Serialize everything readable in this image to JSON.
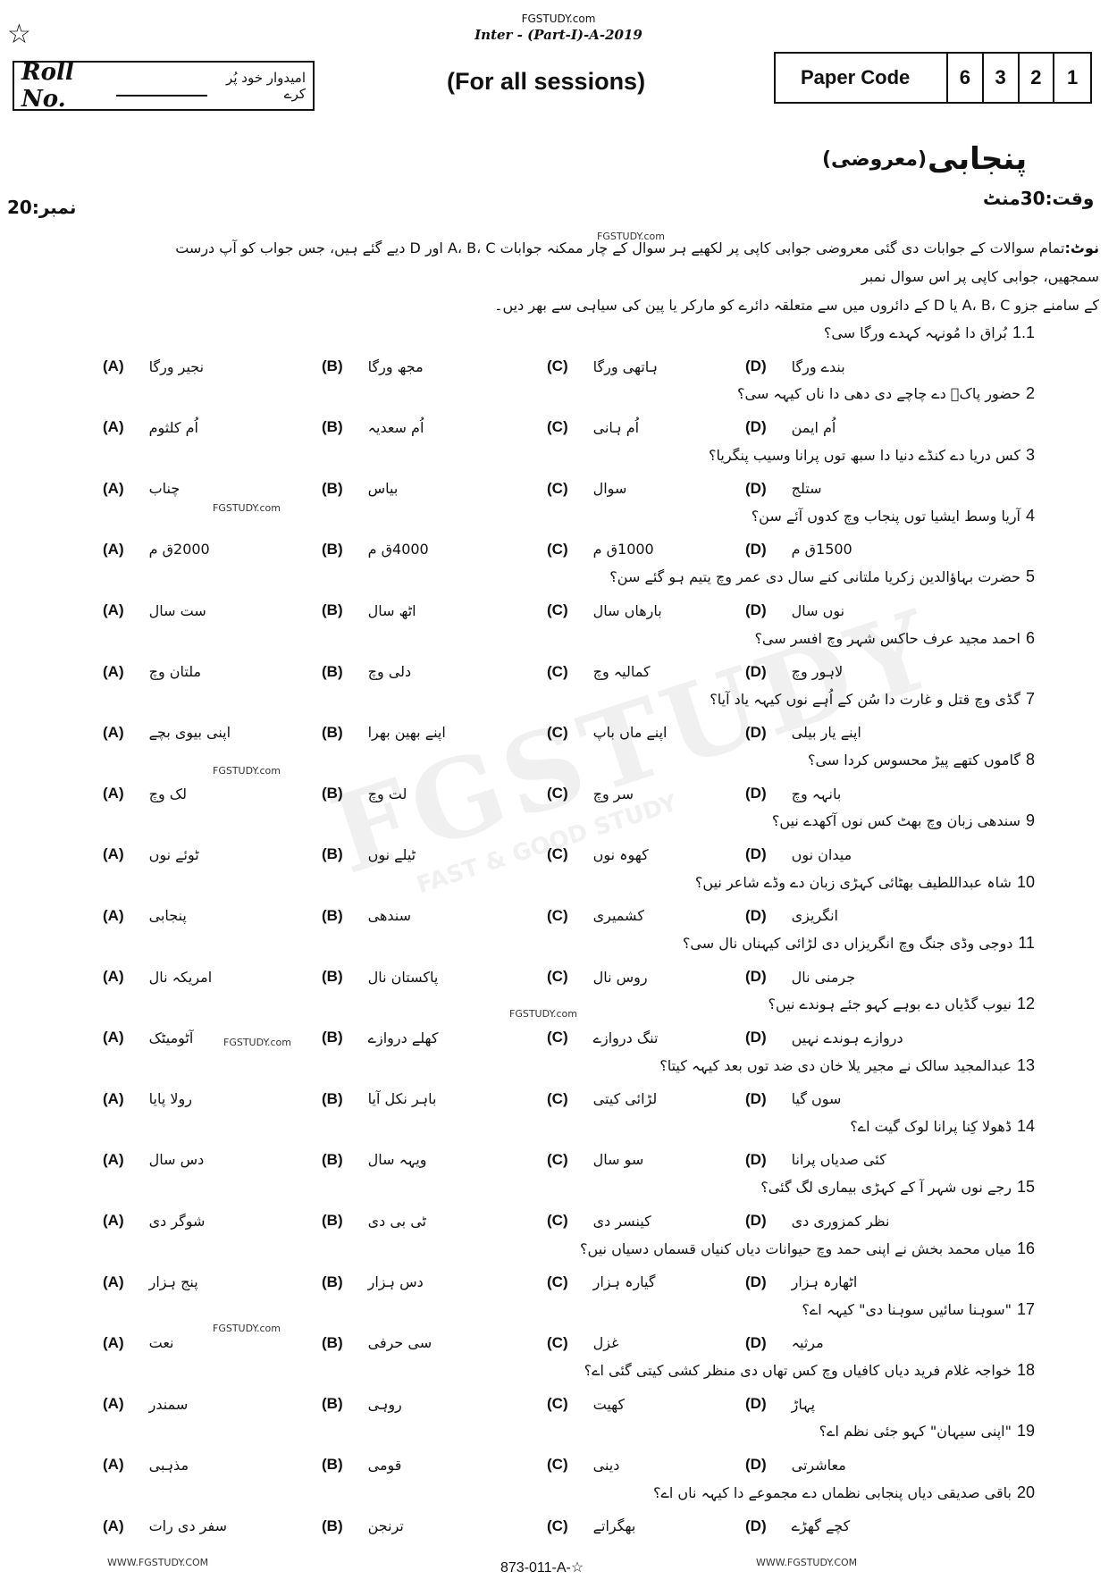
{
  "header": {
    "site": "FGSTUDY.com",
    "info": "Inter - (Part-I)-A-2019",
    "roll_label": "Roll No.",
    "roll_note": "امیدوار خود پُر کرے",
    "sessions": "(For all sessions)",
    "paper_code_label": "Paper Code",
    "paper_code_digits": [
      "6",
      "3",
      "2",
      "1"
    ],
    "subject": "پنجابی",
    "subject_type": "(معروضی)",
    "time": "وقت:30منٹ",
    "marks": "نمبر:20"
  },
  "instructions": {
    "label": "نوٹ:",
    "text_line1": "تمام سوالات کے جوابات دی گئی معروضی جوابی کاپی پر لکھیے ہر سوال کے چار ممکنہ جوابات A، B، C اور D دیے گئے ہیں، جس جواب کو آپ درست سمجھیں، جوابی کاپی پر اس سوال نمبر",
    "text_line2": "کے سامنے جزو A، B، C یا D کے دائروں میں سے متعلقہ دائرے کو مارکر یا پین کی سیاہی سے بھر دیں۔"
  },
  "questions": [
    {
      "num": "1.1",
      "text": "بُراق دا مُونہہ کہدے ورگا سی؟",
      "a": "نجیر ورگا",
      "b": "مجھ ورگا",
      "c": "ہاتھی ورگا",
      "d": "بندے ورگا"
    },
    {
      "num": "2",
      "text": "حضور پاکؐ دے چاچے دی دھی دا ناں کیہہ سی؟",
      "a": "اُم کلثوم",
      "b": "اُم سعدیہ",
      "c": "اُم ہانی",
      "d": "اُم ایمن"
    },
    {
      "num": "3",
      "text": "کس دریا دے کنڈے دنیا دا سبھ توں پرانا وسیب پنگریا؟",
      "a": "چناب",
      "b": "بیاس",
      "c": "سوال",
      "d": "ستلج"
    },
    {
      "num": "4",
      "text": "آریا وسط ایشیا توں پنجاب وچ کدوں آئے سن؟",
      "a": "2000ق م",
      "b": "4000ق م",
      "c": "1000ق م",
      "d": "1500ق م"
    },
    {
      "num": "5",
      "text": "حضرت بہاؤالدین زکریا ملتانی کنے سال دی عمر وچ یتیم ہو گئے سن؟",
      "a": "ست سال",
      "b": "اٹھ سال",
      "c": "بارھاں سال",
      "d": "نوں سال"
    },
    {
      "num": "6",
      "text": "احمد مجید عرف حاکس شہر وچ افسر سی؟",
      "a": "ملتان وچ",
      "b": "دلی وچ",
      "c": "کمالیہ وچ",
      "d": "لاہور وچ"
    },
    {
      "num": "7",
      "text": "گڈی وچ قتل و غارت دا سُن کے اُہے نوں کیہہ یاد آیا؟",
      "a": "اپنی بیوی بچے",
      "b": "اپنے بھین بھرا",
      "c": "اپنے ماں باپ",
      "d": "اپنے یار بیلی"
    },
    {
      "num": "8",
      "text": "گاموں کتھے پیڑ محسوس کردا سی؟",
      "a": "لک وچ",
      "b": "لت وچ",
      "c": "سر وچ",
      "d": "بانہہ وچ"
    },
    {
      "num": "9",
      "text": "سندھی زبان وچ بھٹ کس نوں آکھدے نیں؟",
      "a": "ٹوئے نوں",
      "b": "ٹیلے نوں",
      "c": "کھوہ نوں",
      "d": "میدان نوں"
    },
    {
      "num": "10",
      "text": "شاہ عبداللطیف بھٹائی کہڑی زبان دے وڈے شاعر نیں؟",
      "a": "پنجابی",
      "b": "سندھی",
      "c": "کشمیری",
      "d": "انگریزی"
    },
    {
      "num": "11",
      "text": "دوجی وڈی جنگ وچ انگریزاں دی لڑائی کیہناں نال سی؟",
      "a": "امریکہ نال",
      "b": "پاکستان نال",
      "c": "روس نال",
      "d": "جرمنی نال"
    },
    {
      "num": "12",
      "text": "نیوب گڈیاں دے بوہے کہو جئے ہوندے نیں؟",
      "a": "آٹومیٹک",
      "b": "کھلے دروازے",
      "c": "تنگ دروازے",
      "d": "دروازے ہوندے نہیں"
    },
    {
      "num": "13",
      "text": "عبدالمجید سالک نے مجیر یلا خان دی ضد توں بعد کیہہ کیتا؟",
      "a": "رولا پایا",
      "b": "باہر نکل آیا",
      "c": "لڑائی کیتی",
      "d": "سوں گیا"
    },
    {
      "num": "14",
      "text": "ڈھولا کِنا پرانا لوک گیت اے؟",
      "a": "دس سال",
      "b": "ویہہ سال",
      "c": "سو سال",
      "d": "کئی صدیاں پرانا"
    },
    {
      "num": "15",
      "text": "رجے نوں شہر آ کے کہڑی بیماری لگ گئی؟",
      "a": "شوگر دی",
      "b": "ٹی بی دی",
      "c": "کینسر دی",
      "d": "نظر کمزوری دی"
    },
    {
      "num": "16",
      "text": "میاں محمد بخش نے اپنی حمد وچ حیوانات دیاں کنیاں قسماں دسیاں نیں؟",
      "a": "پنج ہزار",
      "b": "دس ہزار",
      "c": "گیارہ ہزار",
      "d": "اٹھارہ ہزار"
    },
    {
      "num": "17",
      "text": "\"سوہنا سائیں سوہنا دی\" کیہہ اے؟",
      "a": "نعت",
      "b": "سی حرفی",
      "c": "غزل",
      "d": "مرثیہ"
    },
    {
      "num": "18",
      "text": "خواجہ غلام فرید دیاں کافیاں وچ کس تھاں دی منظر کشی کیتی گئی اے؟",
      "a": "سمندر",
      "b": "روہی",
      "c": "کھیت",
      "d": "پہاڑ"
    },
    {
      "num": "19",
      "text": "\"اپنی سیہان\" کہو جئی نظم اے؟",
      "a": "مذہبی",
      "b": "قومی",
      "c": "دینی",
      "d": "معاشرتی"
    },
    {
      "num": "20",
      "text": "باقی صدیقی دیاں پنجابی نظماں دے مجموعے دا کیہہ ناں اے؟",
      "a": "سفر دی رات",
      "b": "ترنجن",
      "c": "بھگراتے",
      "d": "کچے گھڑے"
    }
  ],
  "watermark": {
    "site": "FGSTUDY.com",
    "site_www": "WWW.FGSTUDY.COM",
    "big": "FGSTUDY",
    "tagline": "FAST & GOOD STUDY"
  },
  "footer": "873-011-A-☆"
}
